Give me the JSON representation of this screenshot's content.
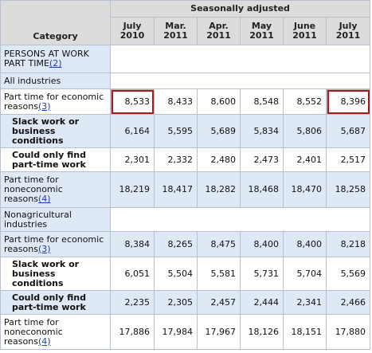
{
  "header": {
    "category": "Category",
    "group": "Seasonally adjusted",
    "months": [
      "July 2010",
      "Mar. 2011",
      "Apr. 2011",
      "May 2011",
      "June 2011",
      "July 2011"
    ]
  },
  "rows": [
    {
      "label": "PERSONS AT WORK PART TIME",
      "fn": "(2)"
    },
    {
      "label": "All industries"
    },
    {
      "label": "Part time for economic reasons",
      "fn": "(3)",
      "values": [
        "8,533",
        "8,433",
        "8,600",
        "8,548",
        "8,552",
        "8,396"
      ]
    },
    {
      "label": "Slack work or business conditions",
      "values": [
        "6,164",
        "5,595",
        "5,689",
        "5,834",
        "5,806",
        "5,687"
      ]
    },
    {
      "label": "Could only find part-time work",
      "values": [
        "2,301",
        "2,332",
        "2,480",
        "2,473",
        "2,401",
        "2,517"
      ]
    },
    {
      "label": "Part time for noneconomic reasons",
      "fn": "(4)",
      "values": [
        "18,219",
        "18,417",
        "18,282",
        "18,468",
        "18,470",
        "18,258"
      ]
    },
    {
      "label": "Nonagricultural industries"
    },
    {
      "label": "Part time for economic reasons",
      "fn": "(3)",
      "values": [
        "8,384",
        "8,265",
        "8,475",
        "8,400",
        "8,400",
        "8,218"
      ]
    },
    {
      "label": "Slack work or business conditions",
      "values": [
        "6,051",
        "5,504",
        "5,581",
        "5,731",
        "5,704",
        "5,569"
      ]
    },
    {
      "label": "Could only find part-time work",
      "values": [
        "2,235",
        "2,305",
        "2,457",
        "2,444",
        "2,341",
        "2,466"
      ]
    },
    {
      "label": "Part time for noneconomic reasons",
      "fn": "(4)",
      "values": [
        "17,886",
        "17,984",
        "17,967",
        "18,126",
        "18,151",
        "17,880"
      ]
    }
  ]
}
